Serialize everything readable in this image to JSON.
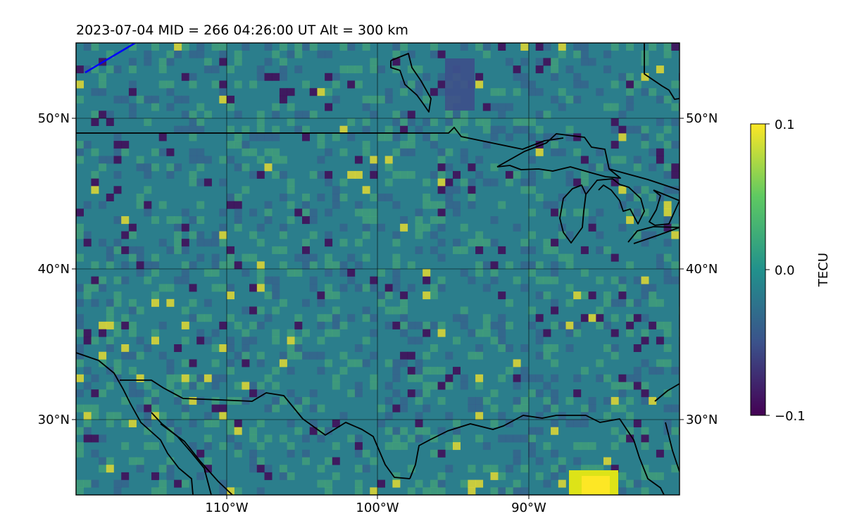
{
  "title": "2023-07-04  MID = 266    04:26:00  UT  Alt = 300 km",
  "map": {
    "lon_range": [
      -120,
      -80
    ],
    "lat_range": [
      25,
      55
    ],
    "lon_ticks": [
      {
        "value": -110,
        "label": "110°W"
      },
      {
        "value": -100,
        "label": "100°W"
      },
      {
        "value": -90,
        "label": "90°W"
      }
    ],
    "lat_ticks": [
      {
        "value": 50,
        "label": "50°N"
      },
      {
        "value": 40,
        "label": "40°N"
      },
      {
        "value": 30,
        "label": "30°N"
      }
    ],
    "grid": true
  },
  "colorbar": {
    "label": "TECU",
    "min": -0.1,
    "max": 0.1,
    "ticks": [
      {
        "value": 0.1,
        "label": "0.1"
      },
      {
        "value": 0.0,
        "label": "0.0"
      },
      {
        "value": -0.1,
        "label": "−0.1"
      }
    ],
    "colormap": "viridis",
    "colors": [
      "#440154",
      "#3b528b",
      "#21918c",
      "#5ec962",
      "#fde725"
    ]
  },
  "colors": {
    "coastline": "#000000",
    "track": "#0000ff",
    "background_field": "#2b7e8c"
  }
}
